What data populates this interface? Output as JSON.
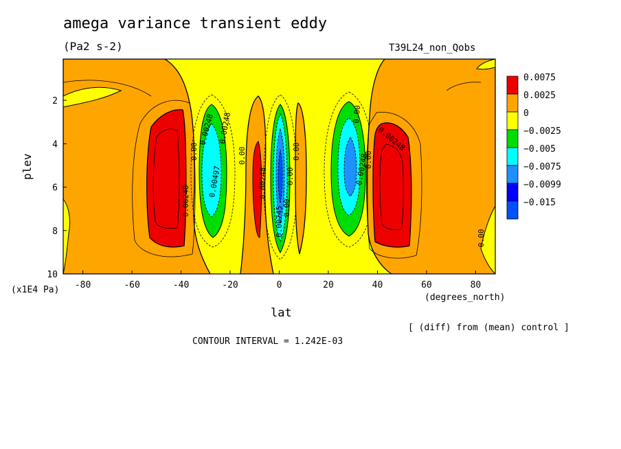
{
  "chart_data": {
    "type": "heatmap",
    "subtype": "filled-contour",
    "title": "amega variance transient eddy",
    "units": "(Pa2 s-2)",
    "run_label": "T39L24_non_Qobs",
    "xlabel": "lat",
    "x_units": "(degrees_north)",
    "ylabel": "plev",
    "y_units": "(x1E4 Pa)",
    "xlim": [
      -88,
      88
    ],
    "ylim": [
      10,
      0.1
    ],
    "y_inverted": true,
    "x_ticks": [
      "-80",
      "-60",
      "-40",
      "-20",
      "0",
      "20",
      "40",
      "60",
      "80"
    ],
    "y_ticks": [
      "2",
      "4",
      "6",
      "8",
      "10"
    ],
    "legend": {
      "placement": "right",
      "levels": [
        "0.0075",
        "0.0025",
        "0",
        "−0.0025",
        "−0.005",
        "−0.0075",
        "−0.0099",
        "−0.015"
      ],
      "colors": [
        "#ee0000",
        "#ffa500",
        "#ffff00",
        "#00dd00",
        "#00ffff",
        "#1e90ff",
        "#0000ff",
        "#0050ff"
      ]
    },
    "contour_labels": [
      "0.00248",
      "0.00",
      "0.00248",
      "0.00497",
      "0.00",
      "0.00248",
      "0.00248",
      "0.00",
      "0.00",
      "0.00745",
      "0.00",
      "0.00",
      "0.00248",
      "0.00248",
      "0.00",
      "0.00"
    ],
    "features": [
      {
        "name": "SH positive max",
        "lat": -45,
        "plev": 5.5,
        "value": 0.0075
      },
      {
        "name": "SH negative min",
        "lat": -26,
        "plev": 5.5,
        "value": -0.0075
      },
      {
        "name": "equatorial negative min",
        "lat": 0,
        "plev": 5.5,
        "value": -0.0099
      },
      {
        "name": "NH negative min",
        "lat": 30,
        "plev": 4.5,
        "value": -0.0075
      },
      {
        "name": "NH positive max",
        "lat": 46,
        "plev": 5.0,
        "value": 0.0075
      }
    ],
    "annotation_bottom": "[ (diff) from (mean) control ]",
    "contour_interval": "CONTOUR INTERVAL = 1.242E-03"
  }
}
